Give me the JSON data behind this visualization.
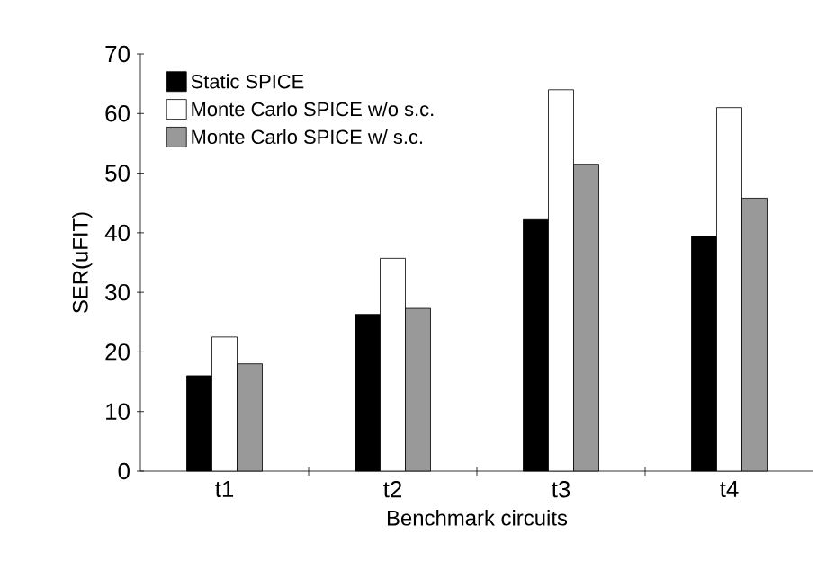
{
  "chart_data": {
    "type": "bar",
    "xlabel": "Benchmark circuits",
    "ylabel": "SER(uFIT)",
    "categories": [
      "t1",
      "t2",
      "t3",
      "t4"
    ],
    "series": [
      {
        "name": "Static SPICE",
        "color": "#000000",
        "values": [
          16,
          26.3,
          42.2,
          39.4
        ]
      },
      {
        "name": "Monte Carlo SPICE w/o s.c.",
        "color": "#ffffff",
        "values": [
          22.5,
          35.7,
          64,
          61
        ]
      },
      {
        "name": "Monte Carlo SPICE w/ s.c.",
        "color": "#999999",
        "values": [
          18,
          27.3,
          51.5,
          45.8
        ]
      }
    ],
    "ylim": [
      0,
      70
    ],
    "yticks": [
      0,
      10,
      20,
      30,
      40,
      50,
      60,
      70
    ],
    "grid": false,
    "legend": "top left"
  }
}
